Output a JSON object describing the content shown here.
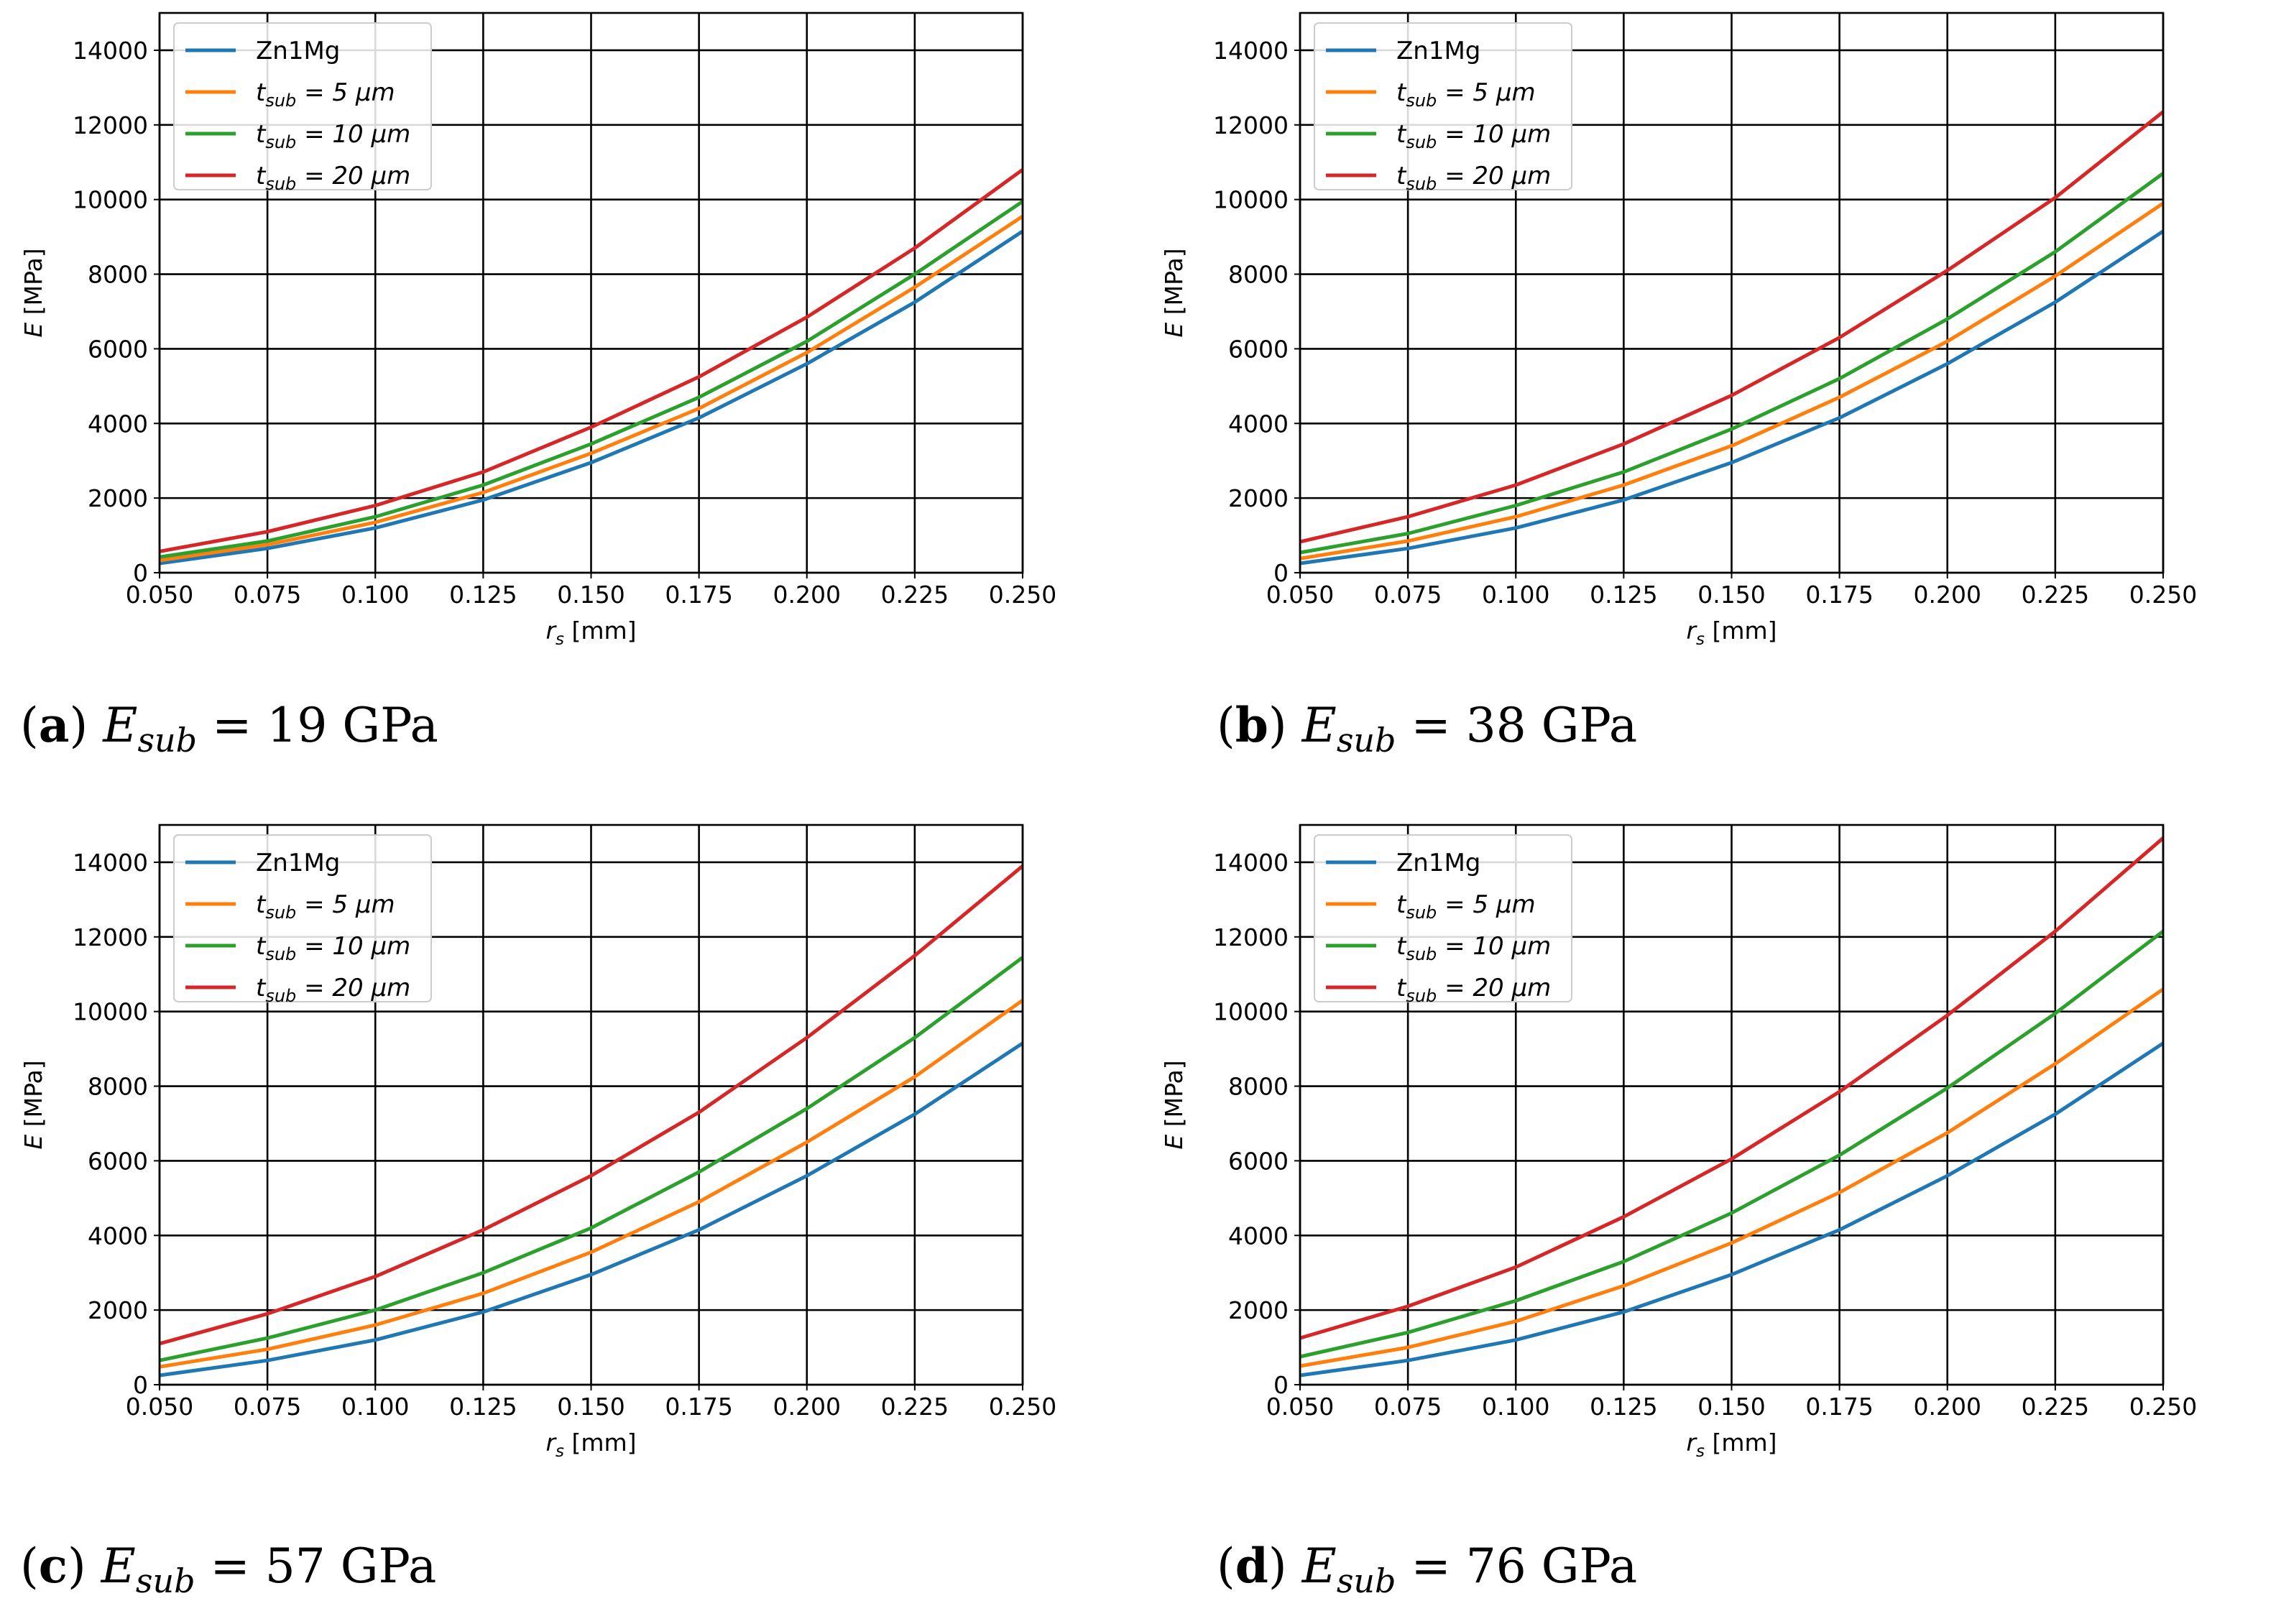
{
  "chart_data": [
    {
      "type": "line",
      "panel": "a",
      "caption": {
        "letter": "a",
        "label": "E",
        "sub": "sub",
        "eq": "= 19 GPa"
      },
      "x": [
        0.05,
        0.075,
        0.1,
        0.125,
        0.15,
        0.175,
        0.2,
        0.225,
        0.25
      ],
      "x_ticks": [
        "0.050",
        "0.075",
        "0.100",
        "0.125",
        "0.150",
        "0.175",
        "0.200",
        "0.225",
        "0.250"
      ],
      "y_ticks": [
        "0",
        "2000",
        "4000",
        "6000",
        "8000",
        "10000",
        "12000",
        "14000"
      ],
      "xlim": [
        0.05,
        0.25
      ],
      "ylim": [
        0,
        15000
      ],
      "xlabel": {
        "var": "r",
        "sub": "s",
        "unit": "[mm]"
      },
      "ylabel": {
        "var": "E",
        "unit": "[MPa]"
      },
      "grid": true,
      "legend": "top-left",
      "series": [
        {
          "name": "Zn1Mg",
          "color": "#1f77b4",
          "values": [
            250,
            650,
            1200,
            1950,
            2950,
            4150,
            5600,
            7250,
            9150
          ]
        },
        {
          "name": "t_sub = 5 μm",
          "color": "#ff7f0e",
          "values": [
            330,
            750,
            1350,
            2150,
            3200,
            4400,
            5900,
            7650,
            9550
          ]
        },
        {
          "name": "t_sub = 10 μm",
          "color": "#2ca02c",
          "values": [
            420,
            850,
            1500,
            2350,
            3450,
            4700,
            6200,
            8000,
            9950
          ]
        },
        {
          "name": "t_sub = 20 μm",
          "color": "#d62728",
          "values": [
            570,
            1100,
            1800,
            2700,
            3900,
            5250,
            6850,
            8700,
            10800
          ]
        }
      ]
    },
    {
      "type": "line",
      "panel": "b",
      "caption": {
        "letter": "b",
        "label": "E",
        "sub": "sub",
        "eq": "= 38 GPa"
      },
      "x": [
        0.05,
        0.075,
        0.1,
        0.125,
        0.15,
        0.175,
        0.2,
        0.225,
        0.25
      ],
      "x_ticks": [
        "0.050",
        "0.075",
        "0.100",
        "0.125",
        "0.150",
        "0.175",
        "0.200",
        "0.225",
        "0.250"
      ],
      "y_ticks": [
        "0",
        "2000",
        "4000",
        "6000",
        "8000",
        "10000",
        "12000",
        "14000"
      ],
      "xlim": [
        0.05,
        0.25
      ],
      "ylim": [
        0,
        15000
      ],
      "xlabel": {
        "var": "r",
        "sub": "s",
        "unit": "[mm]"
      },
      "ylabel": {
        "var": "E",
        "unit": "[MPa]"
      },
      "grid": true,
      "legend": "top-left",
      "series": [
        {
          "name": "Zn1Mg",
          "color": "#1f77b4",
          "values": [
            250,
            650,
            1200,
            1950,
            2950,
            4150,
            5600,
            7250,
            9150
          ]
        },
        {
          "name": "t_sub = 5 μm",
          "color": "#ff7f0e",
          "values": [
            380,
            850,
            1500,
            2350,
            3400,
            4700,
            6200,
            7950,
            9900
          ]
        },
        {
          "name": "t_sub = 10 μm",
          "color": "#2ca02c",
          "values": [
            540,
            1050,
            1800,
            2700,
            3850,
            5200,
            6800,
            8600,
            10700
          ]
        },
        {
          "name": "t_sub = 20 μm",
          "color": "#d62728",
          "values": [
            830,
            1500,
            2350,
            3450,
            4750,
            6300,
            8100,
            10050,
            12350
          ]
        }
      ]
    },
    {
      "type": "line",
      "panel": "c",
      "caption": {
        "letter": "c",
        "label": "E",
        "sub": "sub",
        "eq": "= 57 GPa"
      },
      "x": [
        0.05,
        0.075,
        0.1,
        0.125,
        0.15,
        0.175,
        0.2,
        0.225,
        0.25
      ],
      "x_ticks": [
        "0.050",
        "0.075",
        "0.100",
        "0.125",
        "0.150",
        "0.175",
        "0.200",
        "0.225",
        "0.250"
      ],
      "y_ticks": [
        "0",
        "2000",
        "4000",
        "6000",
        "8000",
        "10000",
        "12000",
        "14000"
      ],
      "xlim": [
        0.05,
        0.25
      ],
      "ylim": [
        0,
        15000
      ],
      "xlabel": {
        "var": "r",
        "sub": "s",
        "unit": "[mm]"
      },
      "ylabel": {
        "var": "E",
        "unit": "[MPa]"
      },
      "grid": true,
      "legend": "top-left",
      "series": [
        {
          "name": "Zn1Mg",
          "color": "#1f77b4",
          "values": [
            250,
            650,
            1200,
            1950,
            2950,
            4150,
            5600,
            7250,
            9150
          ]
        },
        {
          "name": "t_sub = 5 μm",
          "color": "#ff7f0e",
          "values": [
            480,
            950,
            1600,
            2450,
            3550,
            4900,
            6500,
            8250,
            10300
          ]
        },
        {
          "name": "t_sub = 10 μm",
          "color": "#2ca02c",
          "values": [
            650,
            1250,
            2000,
            3000,
            4200,
            5700,
            7400,
            9300,
            11450
          ]
        },
        {
          "name": "t_sub = 20 μm",
          "color": "#d62728",
          "values": [
            1100,
            1900,
            2900,
            4150,
            5600,
            7300,
            9300,
            11500,
            13900
          ]
        }
      ]
    },
    {
      "type": "line",
      "panel": "d",
      "caption": {
        "letter": "d",
        "label": "E",
        "sub": "sub",
        "eq": "= 76 GPa"
      },
      "x": [
        0.05,
        0.075,
        0.1,
        0.125,
        0.15,
        0.175,
        0.2,
        0.225,
        0.25
      ],
      "x_ticks": [
        "0.050",
        "0.075",
        "0.100",
        "0.125",
        "0.150",
        "0.175",
        "0.200",
        "0.225",
        "0.250"
      ],
      "y_ticks": [
        "0",
        "2000",
        "4000",
        "6000",
        "8000",
        "10000",
        "12000",
        "14000"
      ],
      "xlim": [
        0.05,
        0.25
      ],
      "ylim": [
        0,
        15000
      ],
      "xlabel": {
        "var": "r",
        "sub": "s",
        "unit": "[mm]"
      },
      "ylabel": {
        "var": "E",
        "unit": "[MPa]"
      },
      "grid": true,
      "legend": "top-left",
      "series": [
        {
          "name": "Zn1Mg",
          "color": "#1f77b4",
          "values": [
            250,
            650,
            1200,
            1950,
            2950,
            4150,
            5600,
            7250,
            9150
          ]
        },
        {
          "name": "t_sub = 5 μm",
          "color": "#ff7f0e",
          "values": [
            500,
            1000,
            1700,
            2650,
            3800,
            5150,
            6750,
            8600,
            10600
          ]
        },
        {
          "name": "t_sub = 10 μm",
          "color": "#2ca02c",
          "values": [
            750,
            1400,
            2250,
            3300,
            4600,
            6150,
            7950,
            9950,
            12150
          ]
        },
        {
          "name": "t_sub = 20 μm",
          "color": "#d62728",
          "values": [
            1250,
            2100,
            3150,
            4500,
            6050,
            7850,
            9900,
            12150,
            14650
          ]
        }
      ]
    }
  ]
}
